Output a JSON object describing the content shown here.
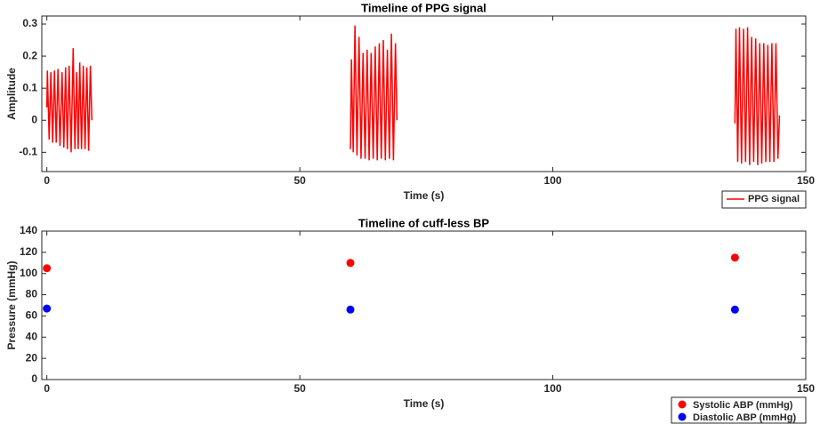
{
  "chart_data": [
    {
      "type": "line",
      "title": "Timeline of PPG signal",
      "xlabel": "Time (s)",
      "ylabel": "Amplitude",
      "xlim": [
        -1,
        150
      ],
      "xticks": [
        0,
        50,
        100,
        150
      ],
      "ylim": [
        -0.16,
        0.325
      ],
      "yticks": [
        -0.1,
        0,
        0.1,
        0.2,
        0.3
      ],
      "grid": false,
      "legend": "below-right",
      "x": [
        0,
        0.1,
        0.45,
        0.8,
        1.15,
        1.5,
        1.85,
        2.2,
        2.6,
        3.0,
        3.35,
        3.7,
        4.05,
        4.4,
        4.8,
        5.2,
        5.55,
        5.9,
        6.2,
        6.5,
        6.85,
        7.2,
        7.55,
        7.9,
        8.25,
        8.6,
        8.9,
        30,
        60,
        60.2,
        60.55,
        60.9,
        61.3,
        61.7,
        62.1,
        62.5,
        62.9,
        63.3,
        63.7,
        64.1,
        64.5,
        64.9,
        65.3,
        65.7,
        66.1,
        66.5,
        66.9,
        67.3,
        67.7,
        68.1,
        68.5,
        68.9,
        69.2,
        100,
        136,
        136.2,
        136.55,
        136.9,
        137.3,
        137.7,
        138.1,
        138.5,
        138.9,
        139.3,
        139.7,
        140.1,
        140.5,
        140.9,
        141.3,
        141.7,
        142.1,
        142.5,
        142.9,
        143.3,
        143.7,
        144.1,
        144.5,
        144.8
      ],
      "series": [
        {
          "name": "PPG signal",
          "color": "#ff0000",
          "values": [
            0.04,
            0.155,
            -0.06,
            0.15,
            -0.07,
            0.155,
            -0.07,
            0.16,
            -0.08,
            0.15,
            -0.085,
            0.165,
            -0.09,
            0.17,
            -0.1,
            0.225,
            -0.09,
            0.15,
            -0.09,
            0.18,
            -0.09,
            0.17,
            -0.09,
            0.165,
            -0.095,
            0.17,
            0.0,
            null,
            -0.09,
            0.19,
            -0.1,
            0.295,
            -0.11,
            0.26,
            -0.12,
            0.21,
            -0.12,
            0.22,
            -0.125,
            0.21,
            -0.12,
            0.23,
            -0.125,
            0.24,
            -0.12,
            0.25,
            -0.125,
            0.22,
            -0.12,
            0.27,
            -0.125,
            0.24,
            0.0,
            null,
            -0.01,
            0.285,
            -0.13,
            0.29,
            -0.135,
            0.285,
            -0.13,
            0.29,
            -0.14,
            0.26,
            -0.13,
            0.255,
            -0.14,
            0.24,
            -0.135,
            0.24,
            -0.13,
            0.235,
            -0.13,
            0.24,
            -0.13,
            0.24,
            -0.12,
            0.015
          ]
        }
      ]
    },
    {
      "type": "scatter",
      "title": "Timeline of cuff-less BP",
      "xlabel": "Time (s)",
      "ylabel": "Pressure (mmHg)",
      "xlim": [
        -1,
        150
      ],
      "xticks": [
        0,
        50,
        100,
        150
      ],
      "ylim": [
        0,
        140
      ],
      "yticks": [
        0,
        20,
        40,
        60,
        80,
        100,
        120,
        140
      ],
      "grid": false,
      "legend": "below-right",
      "x": [
        0,
        60,
        136
      ],
      "series": [
        {
          "name": "Systolic ABP (mmHg)",
          "color": "#ff0000",
          "values": [
            105,
            110,
            115
          ]
        },
        {
          "name": "Diastolic ABP (mmHg)",
          "color": "#0000ff",
          "values": [
            67,
            66,
            66
          ]
        }
      ]
    }
  ]
}
